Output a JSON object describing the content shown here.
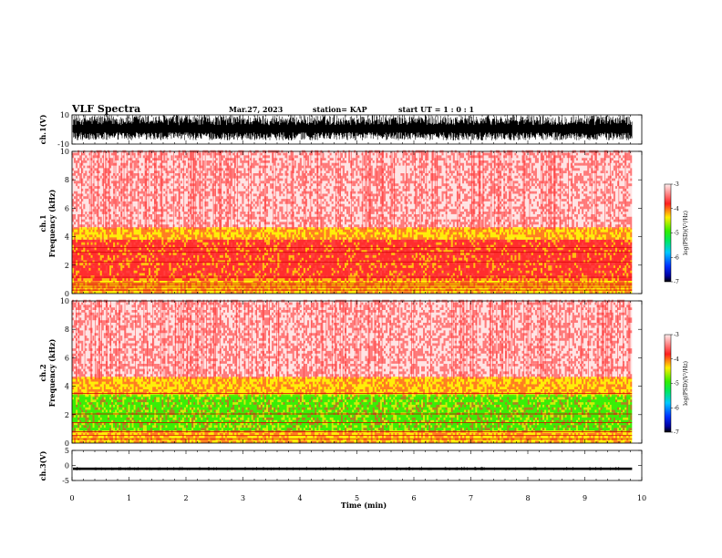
{
  "header": {
    "title": "VLF Spectra",
    "date": "Mar.27, 2023",
    "station": "station= KAP",
    "start": "start  UT =   1 : 0  : 1"
  },
  "chart_data": [
    {
      "panel": "ch1-waveform",
      "type": "line",
      "ylabel": "ch.1(V)",
      "ylim": [
        -10,
        10
      ],
      "y_ticks": [
        "10",
        "-10"
      ],
      "xlim": [
        0,
        10
      ],
      "data_end_min": 9.83,
      "description_of_series": "dense oscillating signal spanning roughly -7 to +10 V"
    },
    {
      "panel": "ch1-spectrogram",
      "type": "heatmap",
      "ylabel": "ch.1\nFrequency  (kHz)",
      "ylabel_lines": [
        "ch.1",
        "Frequency  (kHz)"
      ],
      "ylim": [
        0,
        10
      ],
      "y_ticks": [
        "0",
        "2",
        "4",
        "6",
        "8",
        "10"
      ],
      "xlim": [
        0,
        10
      ],
      "colorbar": {
        "label": "log(PSD)(V²/Hz)",
        "range": [
          -7,
          -3
        ],
        "ticks": [
          "-3",
          "-4",
          "-5",
          "-6",
          "-7"
        ]
      },
      "bands": [
        {
          "f_low": 0.0,
          "f_high": 0.9,
          "level": -4.0
        },
        {
          "f_low": 0.9,
          "f_high": 3.8,
          "level": -3.6
        },
        {
          "f_low": 3.8,
          "f_high": 4.6,
          "level": -3.9
        },
        {
          "f_low": 4.6,
          "f_high": 10.0,
          "level": -3.2
        }
      ],
      "lines_khz": [
        0.25,
        0.45,
        0.6,
        0.75,
        1.15,
        2.2,
        2.9,
        3.25
      ]
    },
    {
      "panel": "ch2-spectrogram",
      "type": "heatmap",
      "ylabel": "ch.2\nFrequency  (kHz)",
      "ylabel_lines": [
        "ch.2",
        "Frequency  (kHz)"
      ],
      "ylim": [
        0,
        10
      ],
      "y_ticks": [
        "0",
        "2",
        "4",
        "6",
        "8",
        "10"
      ],
      "xlim": [
        0,
        10
      ],
      "colorbar": {
        "label": "log(PSD)(V²/Hz)",
        "range": [
          -7,
          -3
        ],
        "ticks": [
          "-3",
          "-4",
          "-5",
          "-6",
          "-7"
        ]
      },
      "bands": [
        {
          "f_low": 0.0,
          "f_high": 0.8,
          "level": -4.0
        },
        {
          "f_low": 0.8,
          "f_high": 3.3,
          "level": -4.6
        },
        {
          "f_low": 3.3,
          "f_high": 4.6,
          "level": -4.0
        },
        {
          "f_low": 4.6,
          "f_high": 10.0,
          "level": -3.2
        }
      ],
      "lines_khz": [
        0.3,
        0.55,
        0.8,
        1.45,
        2.05,
        3.5
      ]
    },
    {
      "panel": "ch3-waveform",
      "type": "line",
      "ylabel": "ch.3(V)",
      "ylim": [
        -5,
        5
      ],
      "y_ticks": [
        "5",
        "0",
        "-5"
      ],
      "xlim": [
        0,
        10
      ],
      "data_end_min": 9.83,
      "description_of_series": "narrow band near -1 V"
    }
  ],
  "x_axis": {
    "xlabel": "Time  (min)",
    "xlim": [
      0,
      10
    ],
    "ticks": [
      "0",
      "1",
      "2",
      "3",
      "4",
      "5",
      "6",
      "7",
      "8",
      "9",
      "10"
    ]
  },
  "colors": {
    "pale": "#ffe4e4",
    "red": "#ff2020",
    "yellow": "#ffee00",
    "green": "#33ee00",
    "black": "#000000"
  }
}
